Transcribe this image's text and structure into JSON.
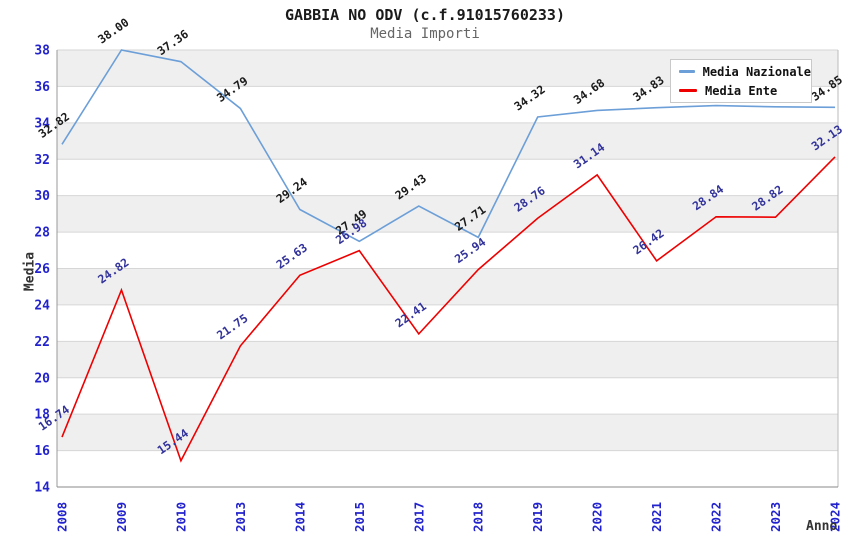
{
  "chart_data": {
    "type": "line",
    "title": "GABBIA NO ODV (c.f.91015760233)",
    "subtitle": "Media Importi",
    "xlabel": "Anno",
    "ylabel": "Media",
    "categories": [
      "2008",
      "2009",
      "2010",
      "2013",
      "2014",
      "2015",
      "2017",
      "2018",
      "2019",
      "2020",
      "2021",
      "2022",
      "2023",
      "2024"
    ],
    "series": [
      {
        "name": "Media Nazionale",
        "color": "#6c9fd8",
        "label_color": "#1a1a1a",
        "values": [
          32.82,
          38.0,
          37.36,
          34.79,
          29.24,
          27.49,
          29.43,
          27.71,
          34.32,
          34.68,
          34.83,
          34.95,
          34.88,
          34.85
        ],
        "labels": [
          "32.82",
          "38.00",
          "37.36",
          "34.79",
          "29.24",
          "27.49",
          "29.43",
          "27.71",
          "34.32",
          "34.68",
          "34.83",
          "",
          "",
          "34.85"
        ]
      },
      {
        "name": "Media Ente",
        "color": "#ee0000",
        "label_color": "#32329b",
        "values": [
          16.74,
          24.82,
          15.44,
          21.75,
          25.63,
          26.98,
          22.41,
          25.94,
          28.76,
          31.14,
          26.42,
          28.84,
          28.82,
          32.13
        ],
        "labels": [
          "16.74",
          "24.82",
          "15.44",
          "21.75",
          "25.63",
          "26.98",
          "22.41",
          "25.94",
          "28.76",
          "31.14",
          "26.42",
          "28.84",
          "28.82",
          "32.13"
        ]
      }
    ],
    "ylim": [
      14,
      38
    ],
    "yticks": [
      14,
      16,
      18,
      20,
      22,
      24,
      26,
      28,
      30,
      32,
      34,
      36,
      38
    ],
    "grid": true,
    "band_color": "#efefef",
    "grid_color": "#d6d6d6",
    "axis_color": "#999999",
    "tick_label_color": "#2323cd",
    "legend": {
      "position": "top-right",
      "items": [
        {
          "label": "Media Nazionale",
          "color": "#6c9fd8"
        },
        {
          "label": "Media Ente",
          "color": "#ee0000"
        }
      ]
    }
  }
}
